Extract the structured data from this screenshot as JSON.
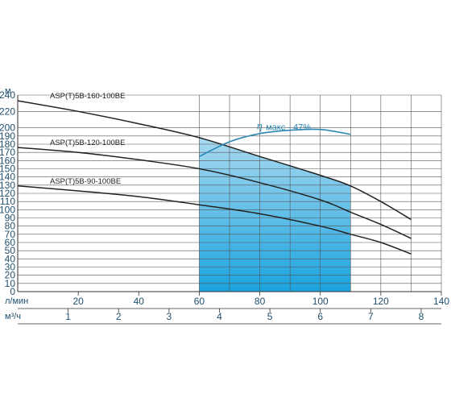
{
  "chart_data": {
    "type": "line",
    "y_unit": "м",
    "ylim": [
      0,
      240
    ],
    "y_ticks": [
      "0",
      "10",
      "20",
      "30",
      "40",
      "50",
      "60",
      "70",
      "80",
      "90",
      "100",
      "110",
      "120",
      "130",
      "140",
      "150",
      "160",
      "170",
      "180",
      "190",
      "200",
      "220",
      "240"
    ],
    "y_tick_values": [
      0,
      10,
      20,
      30,
      40,
      50,
      60,
      70,
      80,
      90,
      100,
      110,
      120,
      130,
      140,
      150,
      160,
      170,
      180,
      190,
      200,
      220,
      240
    ],
    "x_unit_lpm": "л/мин",
    "xlim_lpm": [
      0,
      140
    ],
    "x_ticks_lpm": [
      "20",
      "40",
      "60",
      "80",
      "100",
      "120",
      "140"
    ],
    "x_tick_values_lpm": [
      20,
      40,
      60,
      80,
      100,
      120,
      140
    ],
    "x_unit_m3h": "м³/ч",
    "x_ticks_m3h": [
      "1",
      "2",
      "3",
      "4",
      "5",
      "6",
      "7",
      "8"
    ],
    "x_tick_values_m3h": [
      1,
      2,
      3,
      4,
      5,
      6,
      7,
      8
    ],
    "grid": true,
    "working_range_lpm": [
      60,
      110
    ],
    "series": [
      {
        "name": "ASP(T)5B-160-100BE",
        "x": [
          0,
          20,
          40,
          60,
          80,
          100,
          110,
          120,
          130
        ],
        "y": [
          233,
          220,
          205,
          188,
          165,
          142,
          129,
          110,
          88
        ]
      },
      {
        "name": "ASP(T)5B-120-100BE",
        "x": [
          0,
          20,
          40,
          60,
          80,
          100,
          110,
          120,
          130
        ],
        "y": [
          176,
          170,
          161,
          150,
          133,
          112,
          97,
          82,
          65
        ]
      },
      {
        "name": "ASP(T)5B-90-100BE",
        "x": [
          0,
          20,
          40,
          60,
          80,
          100,
          110,
          120,
          130
        ],
        "y": [
          129,
          123,
          116,
          106,
          95,
          80,
          70,
          60,
          46
        ]
      }
    ],
    "efficiency": {
      "label": "макс - 47%",
      "symbol": "η",
      "color": "#2a88b4",
      "x": [
        60,
        70,
        80,
        90,
        100,
        110
      ],
      "y": [
        165,
        183,
        193,
        197,
        198,
        192
      ]
    },
    "colors": {
      "fill_top": "#cfe8f5",
      "fill_bottom": "#1aa3df",
      "axis_text": "#1f4f6e",
      "grid": "#555555",
      "curve": "#222222"
    }
  }
}
